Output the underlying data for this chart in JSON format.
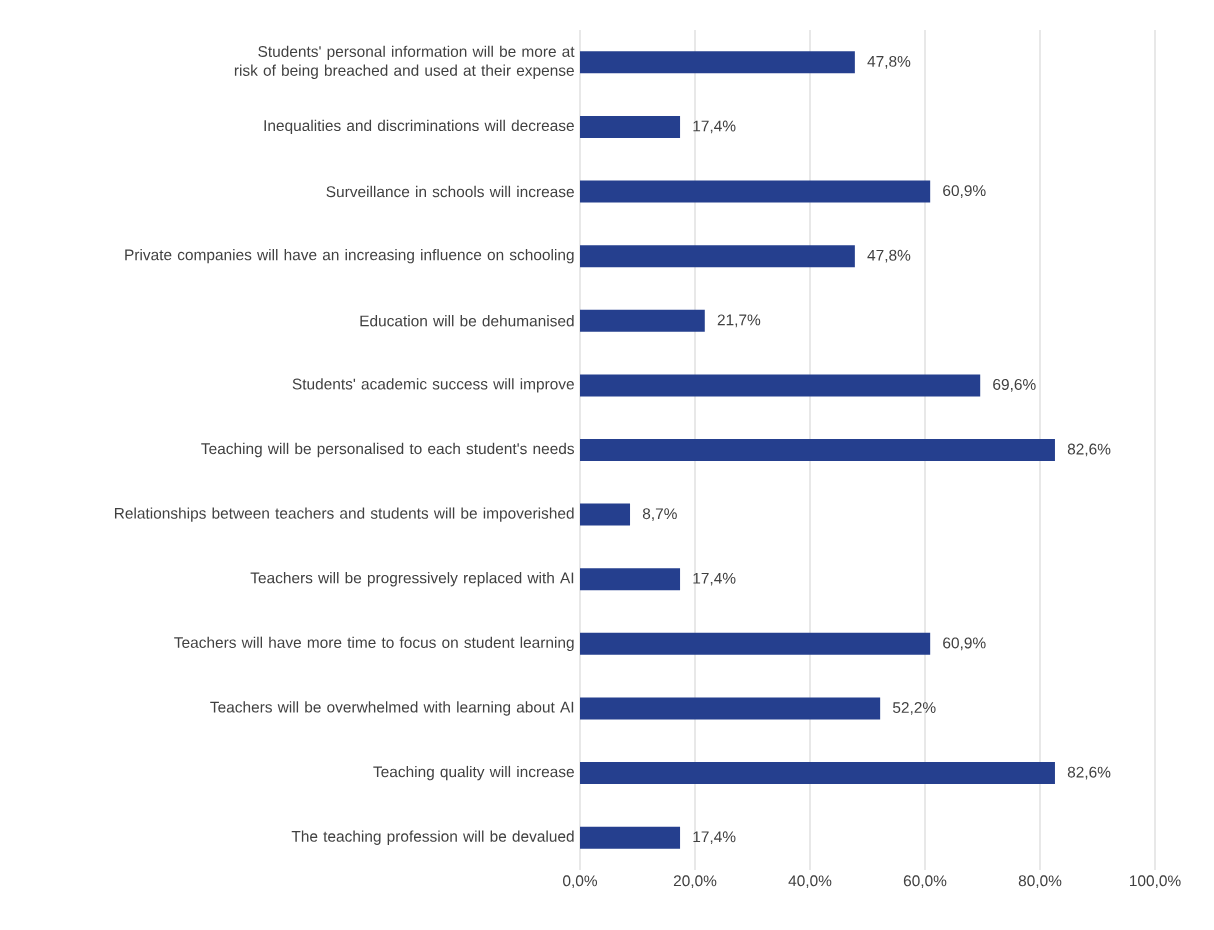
{
  "chart_data": {
    "type": "bar",
    "orientation": "horizontal",
    "color": "#253f8e",
    "categories": [
      "Students' personal information will be more at risk of being breached and used at their expense",
      "Inequalities and discriminations will decrease",
      "Surveillance in schools will increase",
      "Private companies will have an increasing influence on schooling",
      "Education will be dehumanised",
      "Students' academic success will improve",
      "Teaching will be personalised to each student's needs",
      "Relationships between teachers and students will be impoverished",
      "Teachers will be progressively replaced with AI",
      "Teachers will have more time to focus on student learning",
      "Teachers will be overwhelmed with learning about AI",
      "Teaching quality will increase",
      "The teaching profession will be devalued"
    ],
    "values": [
      47.8,
      17.4,
      60.9,
      47.8,
      21.7,
      69.6,
      82.6,
      8.7,
      17.4,
      60.9,
      52.2,
      82.6,
      17.4
    ],
    "value_labels": [
      "47,8%",
      "17,4%",
      "60,9%",
      "47,8%",
      "21,7%",
      "69,6%",
      "82,6%",
      "8,7%",
      "17,4%",
      "60,9%",
      "52,2%",
      "82,6%",
      "17,4%"
    ],
    "xlim": [
      0,
      100
    ],
    "xticks": [
      {
        "value": 0,
        "label": "0,0%"
      },
      {
        "value": 20,
        "label": "20,0%"
      },
      {
        "value": 40,
        "label": "40,0%"
      },
      {
        "value": 60,
        "label": "60,0%"
      },
      {
        "value": 80,
        "label": "80,0%"
      },
      {
        "value": 100,
        "label": "100,0%"
      }
    ],
    "grid": "x"
  }
}
